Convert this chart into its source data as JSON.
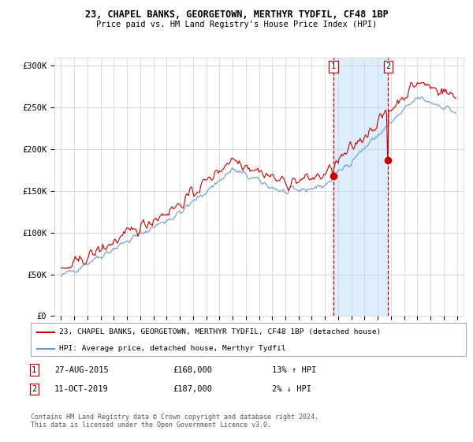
{
  "title": "23, CHAPEL BANKS, GEORGETOWN, MERTHYR TYDFIL, CF48 1BP",
  "subtitle": "Price paid vs. HM Land Registry's House Price Index (HPI)",
  "legend_line1": "23, CHAPEL BANKS, GEORGETOWN, MERTHYR TYDFIL, CF48 1BP (detached house)",
  "legend_line2": "HPI: Average price, detached house, Merthyr Tydfil",
  "sale1_date": "27-AUG-2015",
  "sale1_price": 168000,
  "sale1_label": "1",
  "sale1_pct": "13% ↑ HPI",
  "sale2_date": "11-OCT-2019",
  "sale2_price": 187000,
  "sale2_label": "2",
  "sale2_pct": "2% ↓ HPI",
  "footnote": "Contains HM Land Registry data © Crown copyright and database right 2024.\nThis data is licensed under the Open Government Licence v3.0.",
  "red_color": "#cc0000",
  "blue_color": "#6699cc",
  "shade_color": "#ddeeff",
  "grid_color": "#cccccc",
  "background_color": "#ffffff",
  "ylim": [
    0,
    310000
  ],
  "yticks": [
    0,
    50000,
    100000,
    150000,
    200000,
    250000,
    300000
  ],
  "ytick_labels": [
    "£0",
    "£50K",
    "£100K",
    "£150K",
    "£200K",
    "£250K",
    "£300K"
  ],
  "sale1_year": 2015.65,
  "sale2_year": 2019.78
}
